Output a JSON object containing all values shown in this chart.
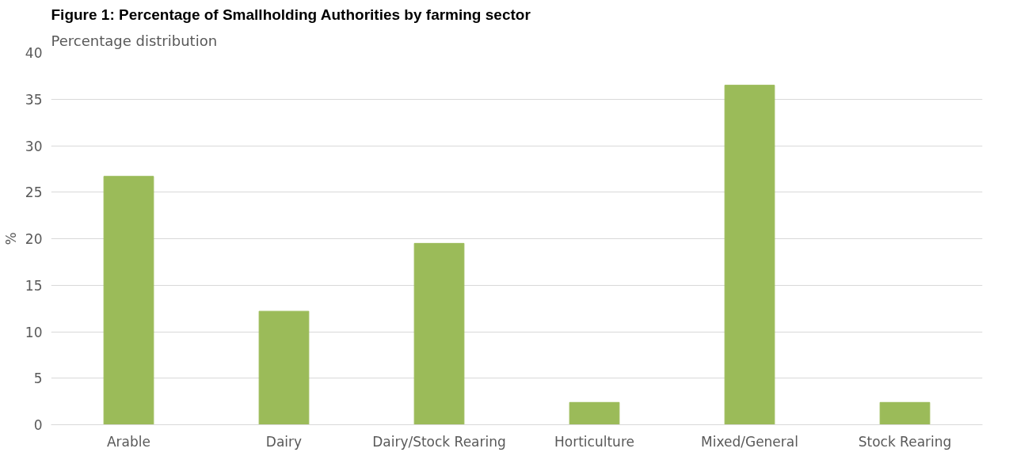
{
  "chart_data": {
    "type": "bar",
    "title": "Figure 1: Percentage of Smallholding Authorities by farming sector",
    "subtitle": "Percentage distribution",
    "ylabel": "%",
    "categories": [
      "Arable",
      "Dairy",
      "Dairy/Stock Rearing",
      "Horticulture",
      "Mixed/General",
      "Stock Rearing"
    ],
    "values": [
      26.7,
      12.2,
      19.5,
      2.4,
      36.5,
      2.4
    ],
    "color": "#9bbb59",
    "ylim": [
      0,
      40
    ],
    "yticks": [
      0,
      5,
      10,
      15,
      20,
      25,
      30,
      35,
      40
    ],
    "grid": "y"
  }
}
